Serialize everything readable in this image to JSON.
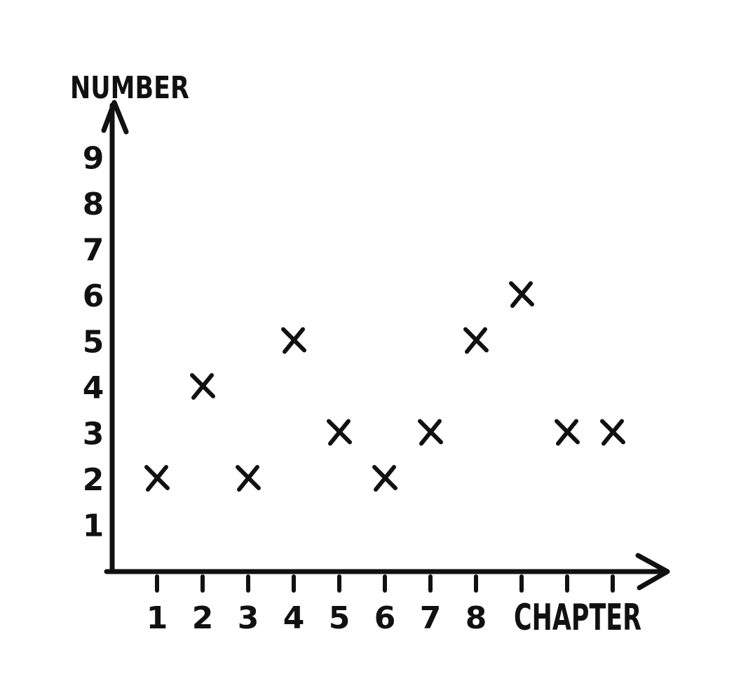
{
  "chart_data": {
    "type": "scatter",
    "title": "",
    "xlabel": "CHAPTER",
    "ylabel": "NUMBER",
    "x_ticks": [
      "1",
      "2",
      "3",
      "4",
      "5",
      "6",
      "7",
      "8",
      "",
      "",
      ""
    ],
    "y_ticks": [
      "1",
      "2",
      "3",
      "4",
      "5",
      "6",
      "7",
      "8",
      "9"
    ],
    "xlim": [
      0,
      11
    ],
    "ylim": [
      0,
      9
    ],
    "grid": false,
    "legend": "none",
    "marker": "x",
    "color": "#111111",
    "points": [
      {
        "x": 1,
        "y": 2
      },
      {
        "x": 2,
        "y": 4
      },
      {
        "x": 3,
        "y": 2
      },
      {
        "x": 4,
        "y": 5
      },
      {
        "x": 5,
        "y": 3
      },
      {
        "x": 6,
        "y": 2
      },
      {
        "x": 7,
        "y": 3
      },
      {
        "x": 8,
        "y": 5
      },
      {
        "x": 9,
        "y": 6
      },
      {
        "x": 10,
        "y": 3
      },
      {
        "x": 11,
        "y": 3
      }
    ]
  }
}
